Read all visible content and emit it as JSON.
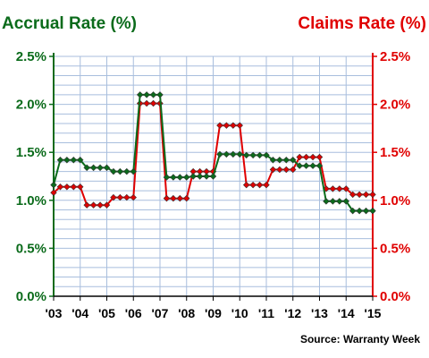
{
  "chart_data": {
    "type": "line",
    "left_title": "Accrual Rate (%)",
    "right_title": "Claims Rate (%)",
    "source": "Source: Warranty Week",
    "y_ticks_left": [
      "0.0%",
      "0.5%",
      "1.0%",
      "1.5%",
      "2.0%",
      "2.5%"
    ],
    "y_ticks_right": [
      "0.0%",
      "0.5%",
      "1.0%",
      "1.5%",
      "2.0%",
      "2.5%"
    ],
    "x_tick_labels": [
      "'03",
      "'04",
      "'05",
      "'06",
      "'07",
      "'08",
      "'09",
      "'10",
      "'11",
      "'12",
      "'13",
      "'14",
      "'15"
    ],
    "ylim": [
      0,
      2.5
    ],
    "grid": true,
    "colors": {
      "accrual": "#0b6b1b",
      "claims": "#e00000",
      "grid": "#a8bedd"
    },
    "series": [
      {
        "name": "Accrual Rate (%)",
        "axis": "left",
        "values": [
          1.16,
          1.42,
          1.42,
          1.42,
          1.42,
          1.34,
          1.34,
          1.34,
          1.34,
          1.3,
          1.3,
          1.3,
          1.3,
          2.1,
          2.1,
          2.1,
          2.1,
          1.24,
          1.24,
          1.24,
          1.24,
          1.25,
          1.25,
          1.25,
          1.25,
          1.48,
          1.48,
          1.48,
          1.48,
          1.47,
          1.47,
          1.47,
          1.47,
          1.42,
          1.42,
          1.42,
          1.42,
          1.36,
          1.36,
          1.36,
          1.36,
          0.99,
          0.99,
          0.99,
          0.99,
          0.89,
          0.89,
          0.89,
          0.89
        ]
      },
      {
        "name": "Claims Rate (%)",
        "axis": "right",
        "values": [
          1.08,
          1.14,
          1.14,
          1.14,
          1.14,
          0.95,
          0.95,
          0.95,
          0.95,
          1.03,
          1.03,
          1.03,
          1.03,
          2.01,
          2.01,
          2.01,
          2.01,
          1.02,
          1.02,
          1.02,
          1.02,
          1.3,
          1.3,
          1.3,
          1.3,
          1.78,
          1.78,
          1.78,
          1.78,
          1.16,
          1.16,
          1.16,
          1.16,
          1.32,
          1.32,
          1.32,
          1.32,
          1.45,
          1.45,
          1.45,
          1.45,
          1.12,
          1.12,
          1.12,
          1.12,
          1.06,
          1.06,
          1.06,
          1.06
        ]
      }
    ]
  }
}
